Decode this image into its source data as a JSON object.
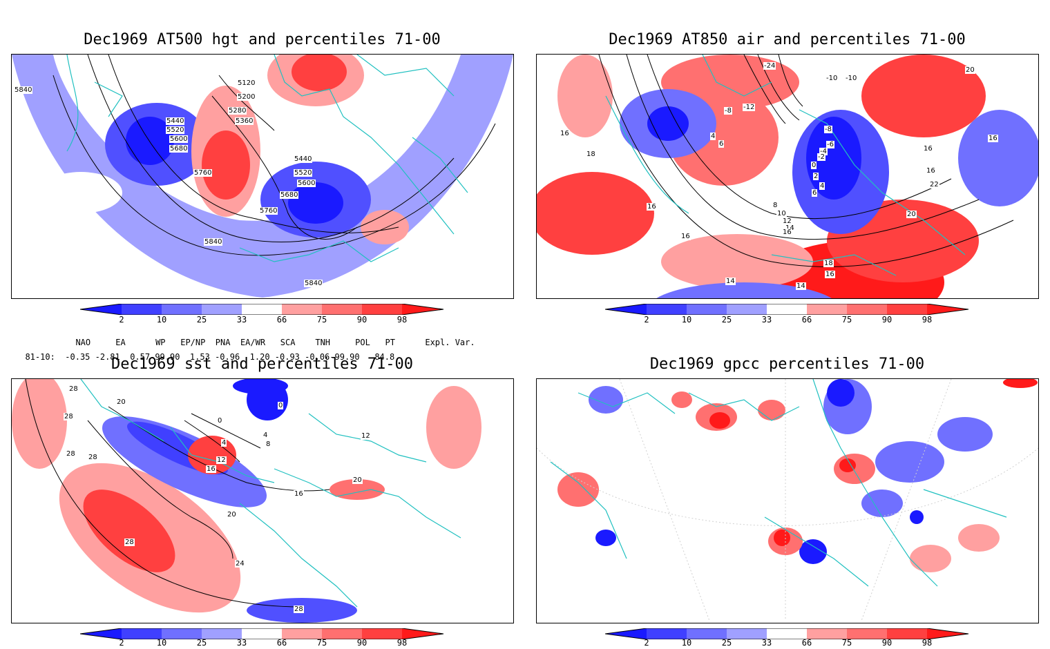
{
  "panels": [
    {
      "title": "Dec1969 AT500 hgt and percentiles 71-00",
      "contour_labels": [
        "5840",
        "5120",
        "5200",
        "5280",
        "5360",
        "5440",
        "5520",
        "5600",
        "5680",
        "5760",
        "5440",
        "5520",
        "5600",
        "5680",
        "5760",
        "5840",
        "5840"
      ]
    },
    {
      "title": "Dec1969 AT850 air and percentiles 71-00",
      "contour_labels": [
        "-24",
        "-10",
        "-10",
        "-8",
        "-12",
        "4",
        "6",
        "16",
        "18",
        "16",
        "-8",
        "-6",
        "-4",
        "-2",
        "0",
        "2",
        "4",
        "6",
        "8",
        "10",
        "12",
        "14",
        "16",
        "16",
        "16",
        "20",
        "22",
        "20",
        "18",
        "16",
        "14",
        "16",
        "14",
        "16"
      ]
    },
    {
      "title": "Dec1969 sst and percentiles 71-00",
      "contour_labels": [
        "28",
        "20",
        "28",
        "28",
        "28",
        "0",
        "0",
        "4",
        "8",
        "12",
        "16",
        "4",
        "16",
        "20",
        "28",
        "24",
        "28",
        "12",
        "20"
      ]
    },
    {
      "title": "Dec1969 gpcc percentiles 71-00",
      "contour_labels": []
    }
  ],
  "colorbar": {
    "ticks": [
      "2",
      "10",
      "25",
      "33",
      "66",
      "75",
      "90",
      "98"
    ],
    "colors": [
      "#1a1aff",
      "#4040ff",
      "#7070ff",
      "#a0a0ff",
      "#ffffff",
      "#ffa0a0",
      "#ff7070",
      "#ff4040",
      "#ff1a1a"
    ]
  },
  "stats": {
    "header": [
      "NAO",
      "EA",
      "WP",
      "EP/NP",
      "PNA",
      "EA/WR",
      "SCA",
      "TNH",
      "POL",
      "PT",
      "Expl. Var."
    ],
    "row_label": "81-10:",
    "values": [
      "-0.35",
      "-2.81",
      "0.57",
      "-99.90",
      "1.53",
      "-0.96",
      "1.20",
      "-0.93",
      "-0.06",
      "-99.90",
      "84.8"
    ]
  },
  "colors": {
    "coast": "#20c0c0",
    "blue_strong": "#1a1aff",
    "blue_mid": "#5050ff",
    "blue_light": "#a0a0ff",
    "red_light": "#ffa0a0",
    "red_mid": "#ff6060",
    "red_strong": "#ff1a1a"
  }
}
